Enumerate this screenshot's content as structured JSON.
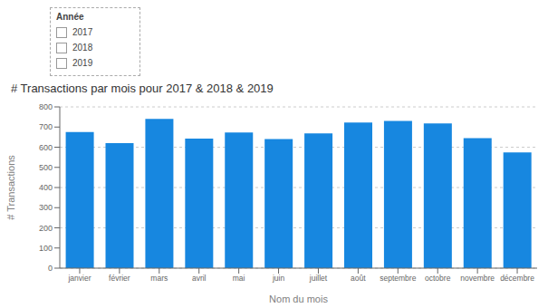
{
  "chart_data": {
    "type": "bar",
    "title": "# Transactions par mois pour 2017 & 2018 & 2019",
    "xlabel": "Nom du mois",
    "ylabel": "# Transactions",
    "categories": [
      "janvier",
      "février",
      "mars",
      "avril",
      "mai",
      "juin",
      "juillet",
      "août",
      "septembre",
      "octobre",
      "novembre",
      "décembre"
    ],
    "values": [
      675,
      620,
      740,
      643,
      673,
      640,
      668,
      722,
      730,
      718,
      645,
      574
    ],
    "color": "#1787E0",
    "ylim": [
      0,
      800
    ],
    "yticks": [
      0,
      100,
      200,
      300,
      400,
      500,
      600,
      700,
      800
    ],
    "grid": true,
    "annotations": [
      "Année",
      "2017",
      "2018",
      "2019"
    ]
  }
}
